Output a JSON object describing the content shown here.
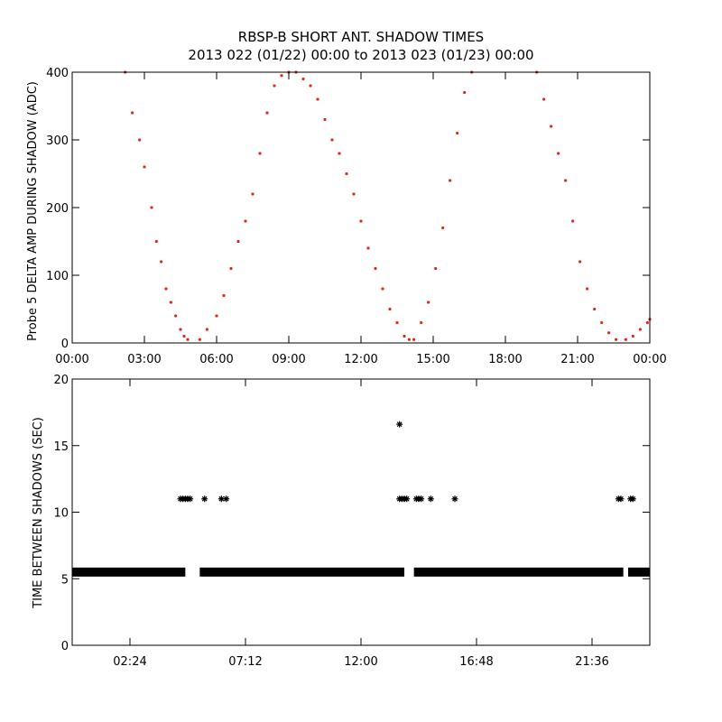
{
  "title_line1": "RBSP-B SHORT ANT. SHADOW TIMES",
  "title_line2": "2013 022 (01/22) 00:00 to 2013 023 (01/23) 00:00",
  "colors": {
    "top_points": "#e0281a",
    "bottom_points": "#000000",
    "axes": "#000000"
  },
  "chart_data": [
    {
      "type": "scatter",
      "name": "delta-amp",
      "ylabel": "Probe 5 DELTA AMP DURING SHADOW (ADC)",
      "xlabel": "",
      "xlim": [
        0,
        24
      ],
      "ylim": [
        0,
        400
      ],
      "x_tick_values": [
        0,
        3,
        6,
        9,
        12,
        15,
        18,
        21,
        24
      ],
      "x_tick_labels": [
        "00:00",
        "03:00",
        "06:00",
        "09:00",
        "12:00",
        "15:00",
        "18:00",
        "21:00",
        "00:00"
      ],
      "y_tick_values": [
        0,
        100,
        200,
        300,
        400
      ],
      "y_tick_labels": [
        "0",
        "100",
        "200",
        "300",
        "400"
      ],
      "point_color": "#e0281a",
      "series": [
        {
          "name": "shadow-1-descent",
          "x": [
            2.2,
            2.5,
            2.8,
            3.0,
            3.3,
            3.5,
            3.7,
            3.9,
            4.1,
            4.3,
            4.5,
            4.65,
            4.8
          ],
          "y": [
            400,
            340,
            300,
            260,
            200,
            150,
            120,
            80,
            60,
            40,
            20,
            10,
            5
          ]
        },
        {
          "name": "shadow-1-ascent",
          "x": [
            5.3,
            5.6,
            6.0,
            6.3,
            6.6,
            6.9,
            7.2,
            7.5,
            7.8,
            8.1,
            8.4,
            8.7,
            9.0
          ],
          "y": [
            5,
            20,
            40,
            70,
            110,
            150,
            180,
            220,
            280,
            340,
            380,
            395,
            400
          ]
        },
        {
          "name": "shadow-2-peak",
          "x": [
            9.3,
            9.6,
            9.9,
            10.2,
            10.5,
            10.8
          ],
          "y": [
            400,
            390,
            380,
            360,
            330,
            300
          ]
        },
        {
          "name": "shadow-2-descent",
          "x": [
            11.1,
            11.4,
            11.7,
            12.0,
            12.3,
            12.6,
            12.9,
            13.2,
            13.5,
            13.8,
            14.0
          ],
          "y": [
            280,
            250,
            220,
            180,
            140,
            110,
            80,
            50,
            30,
            10,
            5
          ]
        },
        {
          "name": "shadow-3-ascent",
          "x": [
            14.2,
            14.5,
            14.8,
            15.1,
            15.4,
            15.7,
            16.0,
            16.3,
            16.6
          ],
          "y": [
            5,
            30,
            60,
            110,
            170,
            240,
            310,
            370,
            400
          ]
        },
        {
          "name": "shadow-4-descent",
          "x": [
            19.3,
            19.6,
            19.9,
            20.2,
            20.5,
            20.8,
            21.1,
            21.4,
            21.7,
            22.0,
            22.3,
            22.6
          ],
          "y": [
            400,
            360,
            320,
            280,
            240,
            180,
            120,
            80,
            50,
            30,
            15,
            5
          ]
        },
        {
          "name": "shadow-5-ascent",
          "x": [
            23.0,
            23.3,
            23.6,
            23.9,
            24.0
          ],
          "y": [
            5,
            10,
            20,
            30,
            35
          ]
        }
      ]
    },
    {
      "type": "scatter",
      "name": "time-between-shadows",
      "ylabel": "TIME BETWEEN SHADOWS (SEC)",
      "xlabel": "",
      "xlim": [
        0,
        24
      ],
      "ylim": [
        0,
        20
      ],
      "x_tick_values": [
        2.4,
        7.2,
        12.0,
        16.8,
        21.6
      ],
      "x_tick_labels": [
        "02:24",
        "07:12",
        "12:00",
        "16:48",
        "21:36"
      ],
      "y_tick_values": [
        0,
        5,
        10,
        15,
        20
      ],
      "y_tick_labels": [
        "0",
        "5",
        "10",
        "15",
        "20"
      ],
      "point_color": "#000000",
      "baseline": {
        "value": 5.5,
        "x_start": 0.0,
        "x_end": 24.0,
        "gaps": [
          [
            4.7,
            5.3
          ],
          [
            13.8,
            14.2
          ],
          [
            22.9,
            23.1
          ]
        ]
      },
      "series": [
        {
          "name": "doubled-intervals",
          "x": [
            4.5,
            4.6,
            4.7,
            4.8,
            4.9,
            5.5,
            6.2,
            6.4,
            13.6,
            13.7,
            13.8,
            13.9,
            14.3,
            14.4,
            14.5,
            14.9,
            15.9,
            22.7,
            22.8,
            23.2,
            23.3
          ],
          "y": [
            11,
            11,
            11,
            11,
            11,
            11,
            11,
            11,
            11,
            11,
            11,
            11,
            11,
            11,
            11,
            11,
            11,
            11,
            11,
            11,
            11
          ]
        },
        {
          "name": "outlier",
          "x": [
            13.6
          ],
          "y": [
            16.6
          ]
        }
      ]
    }
  ]
}
